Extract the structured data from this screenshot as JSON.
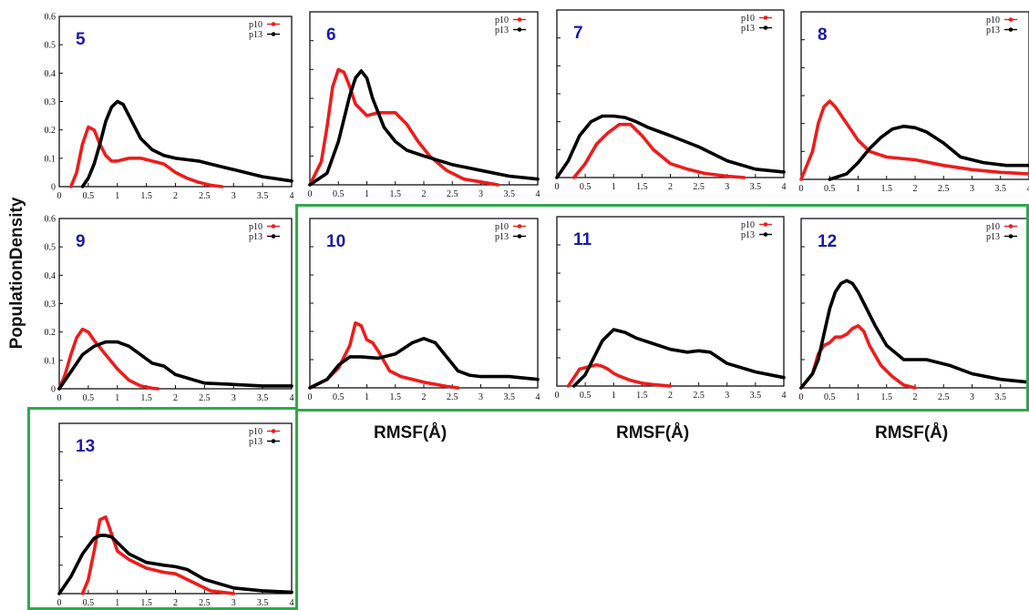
{
  "y_axis_label": "PopulationDensity",
  "x_axis_labels": [
    "RMSF(Å)",
    "RMSF(Å)",
    "RMSF(Å)"
  ],
  "colors": {
    "p10": "#ee1c1c",
    "p13": "#000000",
    "panel_title": "#1a1aa8",
    "highlight": "#2eaa4a"
  },
  "chart_data": [
    {
      "type": "line",
      "title": "5",
      "xlim": [
        0,
        4
      ],
      "ylim": [
        0,
        0.6
      ],
      "x_ticks": [
        "0",
        "0.5",
        "1",
        "1.5",
        "2",
        "2.5",
        "3",
        "3.5",
        "4"
      ],
      "y_ticks": [
        "0",
        "0.1",
        "0.2",
        "0.3",
        "0.4",
        "0.5",
        "0.6"
      ],
      "series": [
        {
          "name": "p10",
          "x": [
            0.2,
            0.3,
            0.4,
            0.5,
            0.6,
            0.7,
            0.8,
            0.9,
            1.0,
            1.2,
            1.4,
            1.6,
            1.8,
            2.0,
            2.2,
            2.4,
            2.6,
            2.8
          ],
          "y": [
            0,
            0.05,
            0.15,
            0.21,
            0.2,
            0.15,
            0.11,
            0.09,
            0.09,
            0.1,
            0.1,
            0.09,
            0.08,
            0.05,
            0.03,
            0.015,
            0.005,
            0
          ]
        },
        {
          "name": "p13",
          "x": [
            0.4,
            0.5,
            0.6,
            0.7,
            0.8,
            0.9,
            1.0,
            1.1,
            1.2,
            1.4,
            1.6,
            1.8,
            2.0,
            2.2,
            2.4,
            2.6,
            2.8,
            3.0,
            3.5,
            4.0
          ],
          "y": [
            0,
            0.03,
            0.08,
            0.15,
            0.23,
            0.28,
            0.3,
            0.29,
            0.25,
            0.17,
            0.13,
            0.11,
            0.1,
            0.095,
            0.09,
            0.08,
            0.07,
            0.06,
            0.035,
            0.02
          ]
        }
      ]
    },
    {
      "type": "line",
      "title": "6",
      "xlim": [
        0,
        4
      ],
      "ylim": [
        0,
        0.6
      ],
      "x_ticks": [
        "0",
        "0.5",
        "1",
        "1.5",
        "2",
        "2.5",
        "3",
        "3.5",
        "4"
      ],
      "y_ticks": [],
      "series": [
        {
          "name": "p10",
          "x": [
            0,
            0.2,
            0.3,
            0.4,
            0.5,
            0.6,
            0.7,
            0.8,
            1.0,
            1.2,
            1.5,
            1.7,
            1.9,
            2.1,
            2.4,
            2.7,
            3.0,
            3.3
          ],
          "y": [
            0,
            0.08,
            0.2,
            0.34,
            0.4,
            0.39,
            0.34,
            0.28,
            0.24,
            0.25,
            0.25,
            0.21,
            0.15,
            0.1,
            0.05,
            0.02,
            0.01,
            0
          ]
        },
        {
          "name": "p13",
          "x": [
            0,
            0.3,
            0.5,
            0.7,
            0.8,
            0.9,
            1.0,
            1.1,
            1.3,
            1.5,
            1.7,
            2.0,
            2.5,
            3.0,
            3.5,
            4.0
          ],
          "y": [
            0,
            0.04,
            0.15,
            0.31,
            0.37,
            0.395,
            0.37,
            0.3,
            0.2,
            0.15,
            0.12,
            0.1,
            0.07,
            0.05,
            0.03,
            0.02
          ]
        }
      ]
    },
    {
      "type": "line",
      "title": "7",
      "xlim": [
        0,
        4
      ],
      "ylim": [
        0,
        0.6
      ],
      "x_ticks": [
        "0",
        "0.5",
        "1",
        "1.5",
        "2",
        "2.5",
        "3",
        "3.5",
        "4"
      ],
      "y_ticks": [],
      "series": [
        {
          "name": "p10",
          "x": [
            0.3,
            0.5,
            0.7,
            0.9,
            1.1,
            1.3,
            1.5,
            1.7,
            2.0,
            2.3,
            2.6,
            3.0,
            3.3
          ],
          "y": [
            0,
            0.05,
            0.12,
            0.16,
            0.19,
            0.19,
            0.15,
            0.1,
            0.05,
            0.03,
            0.015,
            0.005,
            0
          ]
        },
        {
          "name": "p13",
          "x": [
            0,
            0.2,
            0.4,
            0.6,
            0.8,
            1.0,
            1.2,
            1.4,
            1.6,
            2.0,
            2.5,
            3.0,
            3.5,
            4.0
          ],
          "y": [
            0,
            0.06,
            0.15,
            0.2,
            0.22,
            0.22,
            0.215,
            0.2,
            0.18,
            0.15,
            0.11,
            0.06,
            0.03,
            0.02
          ]
        }
      ]
    },
    {
      "type": "line",
      "title": "8",
      "xlim": [
        0,
        4
      ],
      "ylim": [
        0,
        0.6
      ],
      "x_ticks": [
        "0",
        "0.5",
        "1",
        "1.5",
        "2",
        "2.5",
        "3",
        "3.5",
        "4"
      ],
      "y_ticks": [],
      "series": [
        {
          "name": "p10",
          "x": [
            0,
            0.2,
            0.3,
            0.4,
            0.5,
            0.6,
            0.8,
            1.0,
            1.2,
            1.5,
            2.0,
            2.5,
            3.0,
            3.5,
            4.0
          ],
          "y": [
            0,
            0.1,
            0.2,
            0.26,
            0.28,
            0.26,
            0.2,
            0.14,
            0.1,
            0.08,
            0.07,
            0.05,
            0.035,
            0.025,
            0.02
          ]
        },
        {
          "name": "p13",
          "x": [
            0.5,
            0.8,
            1.0,
            1.2,
            1.4,
            1.6,
            1.8,
            2.0,
            2.2,
            2.5,
            2.8,
            3.2,
            3.6,
            4.0
          ],
          "y": [
            0,
            0.02,
            0.06,
            0.11,
            0.15,
            0.18,
            0.19,
            0.185,
            0.17,
            0.13,
            0.08,
            0.06,
            0.05,
            0.05
          ]
        }
      ]
    },
    {
      "type": "line",
      "title": "9",
      "xlim": [
        0,
        4
      ],
      "ylim": [
        0,
        0.6
      ],
      "x_ticks": [
        "0",
        "0.5",
        "1",
        "1.5",
        "2",
        "2.5",
        "3",
        "3.5",
        "4"
      ],
      "y_ticks": [
        "0",
        "0.1",
        "0.2",
        "0.3",
        "0.4",
        "0.5",
        "0.6"
      ],
      "series": [
        {
          "name": "p10",
          "x": [
            0,
            0.1,
            0.2,
            0.3,
            0.4,
            0.5,
            0.6,
            0.8,
            1.0,
            1.2,
            1.4,
            1.6,
            1.7
          ],
          "y": [
            0,
            0.05,
            0.12,
            0.18,
            0.21,
            0.2,
            0.17,
            0.12,
            0.07,
            0.03,
            0.01,
            0.002,
            0
          ]
        },
        {
          "name": "p13",
          "x": [
            0,
            0.2,
            0.4,
            0.6,
            0.8,
            1.0,
            1.2,
            1.4,
            1.6,
            1.8,
            2.0,
            2.5,
            3.0,
            3.5,
            4.0
          ],
          "y": [
            0,
            0.06,
            0.12,
            0.15,
            0.165,
            0.165,
            0.15,
            0.12,
            0.09,
            0.08,
            0.05,
            0.02,
            0.015,
            0.01,
            0.01
          ]
        }
      ]
    },
    {
      "type": "line",
      "title": "10",
      "xlim": [
        0,
        4
      ],
      "ylim": [
        0,
        0.6
      ],
      "x_ticks": [
        "0",
        "0.5",
        "1",
        "1.5",
        "2",
        "2.5",
        "3",
        "3.5",
        "4"
      ],
      "y_ticks": [],
      "series": [
        {
          "name": "p10",
          "x": [
            0,
            0.3,
            0.5,
            0.7,
            0.8,
            0.9,
            1.0,
            1.1,
            1.2,
            1.4,
            1.6,
            2.0,
            2.4,
            2.6
          ],
          "y": [
            0,
            0.03,
            0.07,
            0.15,
            0.23,
            0.22,
            0.17,
            0.16,
            0.13,
            0.06,
            0.04,
            0.02,
            0.005,
            0
          ]
        },
        {
          "name": "p13",
          "x": [
            0,
            0.3,
            0.5,
            0.7,
            0.9,
            1.2,
            1.5,
            1.8,
            2.0,
            2.2,
            2.4,
            2.6,
            2.8,
            3.0,
            3.5,
            4.0
          ],
          "y": [
            0,
            0.03,
            0.08,
            0.11,
            0.11,
            0.105,
            0.12,
            0.16,
            0.175,
            0.16,
            0.11,
            0.06,
            0.045,
            0.04,
            0.04,
            0.03
          ]
        }
      ]
    },
    {
      "type": "line",
      "title": "11",
      "xlim": [
        0,
        4
      ],
      "ylim": [
        0,
        0.6
      ],
      "x_ticks": [
        "0",
        "0.5",
        "1",
        "1.5",
        "2",
        "2.5",
        "3",
        "3.5",
        "4"
      ],
      "y_ticks": [],
      "series": [
        {
          "name": "p10",
          "x": [
            0.2,
            0.3,
            0.4,
            0.5,
            0.6,
            0.7,
            0.8,
            0.9,
            1.0,
            1.1,
            1.3,
            1.5,
            1.7,
            2.0
          ],
          "y": [
            0,
            0.03,
            0.06,
            0.065,
            0.07,
            0.075,
            0.07,
            0.06,
            0.045,
            0.035,
            0.02,
            0.01,
            0.005,
            0
          ]
        },
        {
          "name": "p13",
          "x": [
            0.3,
            0.5,
            0.7,
            0.8,
            0.9,
            1.0,
            1.2,
            1.4,
            1.7,
            2.0,
            2.3,
            2.5,
            2.7,
            3.0,
            3.5,
            4.0
          ],
          "y": [
            0,
            0.04,
            0.12,
            0.16,
            0.18,
            0.2,
            0.19,
            0.17,
            0.15,
            0.13,
            0.12,
            0.125,
            0.12,
            0.08,
            0.05,
            0.03
          ]
        }
      ]
    },
    {
      "type": "line",
      "title": "12",
      "xlim": [
        0,
        4
      ],
      "ylim": [
        0,
        0.6
      ],
      "x_ticks": [
        "0",
        "0.5",
        "1",
        "1.5",
        "2",
        "2.5",
        "3",
        "3.5",
        "4"
      ],
      "y_ticks": [],
      "series": [
        {
          "name": "p10",
          "x": [
            0,
            0.2,
            0.3,
            0.4,
            0.5,
            0.6,
            0.7,
            0.8,
            0.9,
            1.0,
            1.1,
            1.2,
            1.4,
            1.6,
            1.8,
            2.0
          ],
          "y": [
            0,
            0.05,
            0.12,
            0.15,
            0.16,
            0.18,
            0.18,
            0.19,
            0.21,
            0.22,
            0.2,
            0.15,
            0.08,
            0.04,
            0.01,
            0
          ]
        },
        {
          "name": "p13",
          "x": [
            0,
            0.2,
            0.3,
            0.4,
            0.5,
            0.6,
            0.7,
            0.8,
            0.9,
            1.0,
            1.1,
            1.3,
            1.5,
            1.8,
            2.2,
            2.6,
            3.0,
            3.5,
            4.0
          ],
          "y": [
            0,
            0.05,
            0.1,
            0.19,
            0.28,
            0.34,
            0.37,
            0.38,
            0.37,
            0.34,
            0.3,
            0.22,
            0.15,
            0.1,
            0.1,
            0.08,
            0.05,
            0.03,
            0.02
          ]
        }
      ]
    },
    {
      "type": "line",
      "title": "13",
      "xlim": [
        0,
        4
      ],
      "ylim": [
        0,
        0.6
      ],
      "x_ticks": [
        "0",
        "0.5",
        "1",
        "1.5",
        "2",
        "2.5",
        "3",
        "3.5",
        "4"
      ],
      "y_ticks": [],
      "series": [
        {
          "name": "p10",
          "x": [
            0.4,
            0.5,
            0.6,
            0.7,
            0.8,
            0.9,
            1.0,
            1.2,
            1.5,
            1.8,
            2.0,
            2.3,
            2.6,
            3.0
          ],
          "y": [
            0,
            0.05,
            0.15,
            0.26,
            0.27,
            0.21,
            0.15,
            0.12,
            0.09,
            0.075,
            0.07,
            0.04,
            0.01,
            0
          ]
        },
        {
          "name": "p13",
          "x": [
            0,
            0.2,
            0.4,
            0.6,
            0.7,
            0.8,
            0.9,
            1.0,
            1.2,
            1.5,
            1.8,
            2.0,
            2.2,
            2.5,
            3.0,
            3.5,
            4.0
          ],
          "y": [
            0,
            0.06,
            0.14,
            0.195,
            0.205,
            0.205,
            0.2,
            0.18,
            0.14,
            0.11,
            0.1,
            0.095,
            0.085,
            0.05,
            0.02,
            0.01,
            0.005
          ]
        }
      ]
    }
  ]
}
